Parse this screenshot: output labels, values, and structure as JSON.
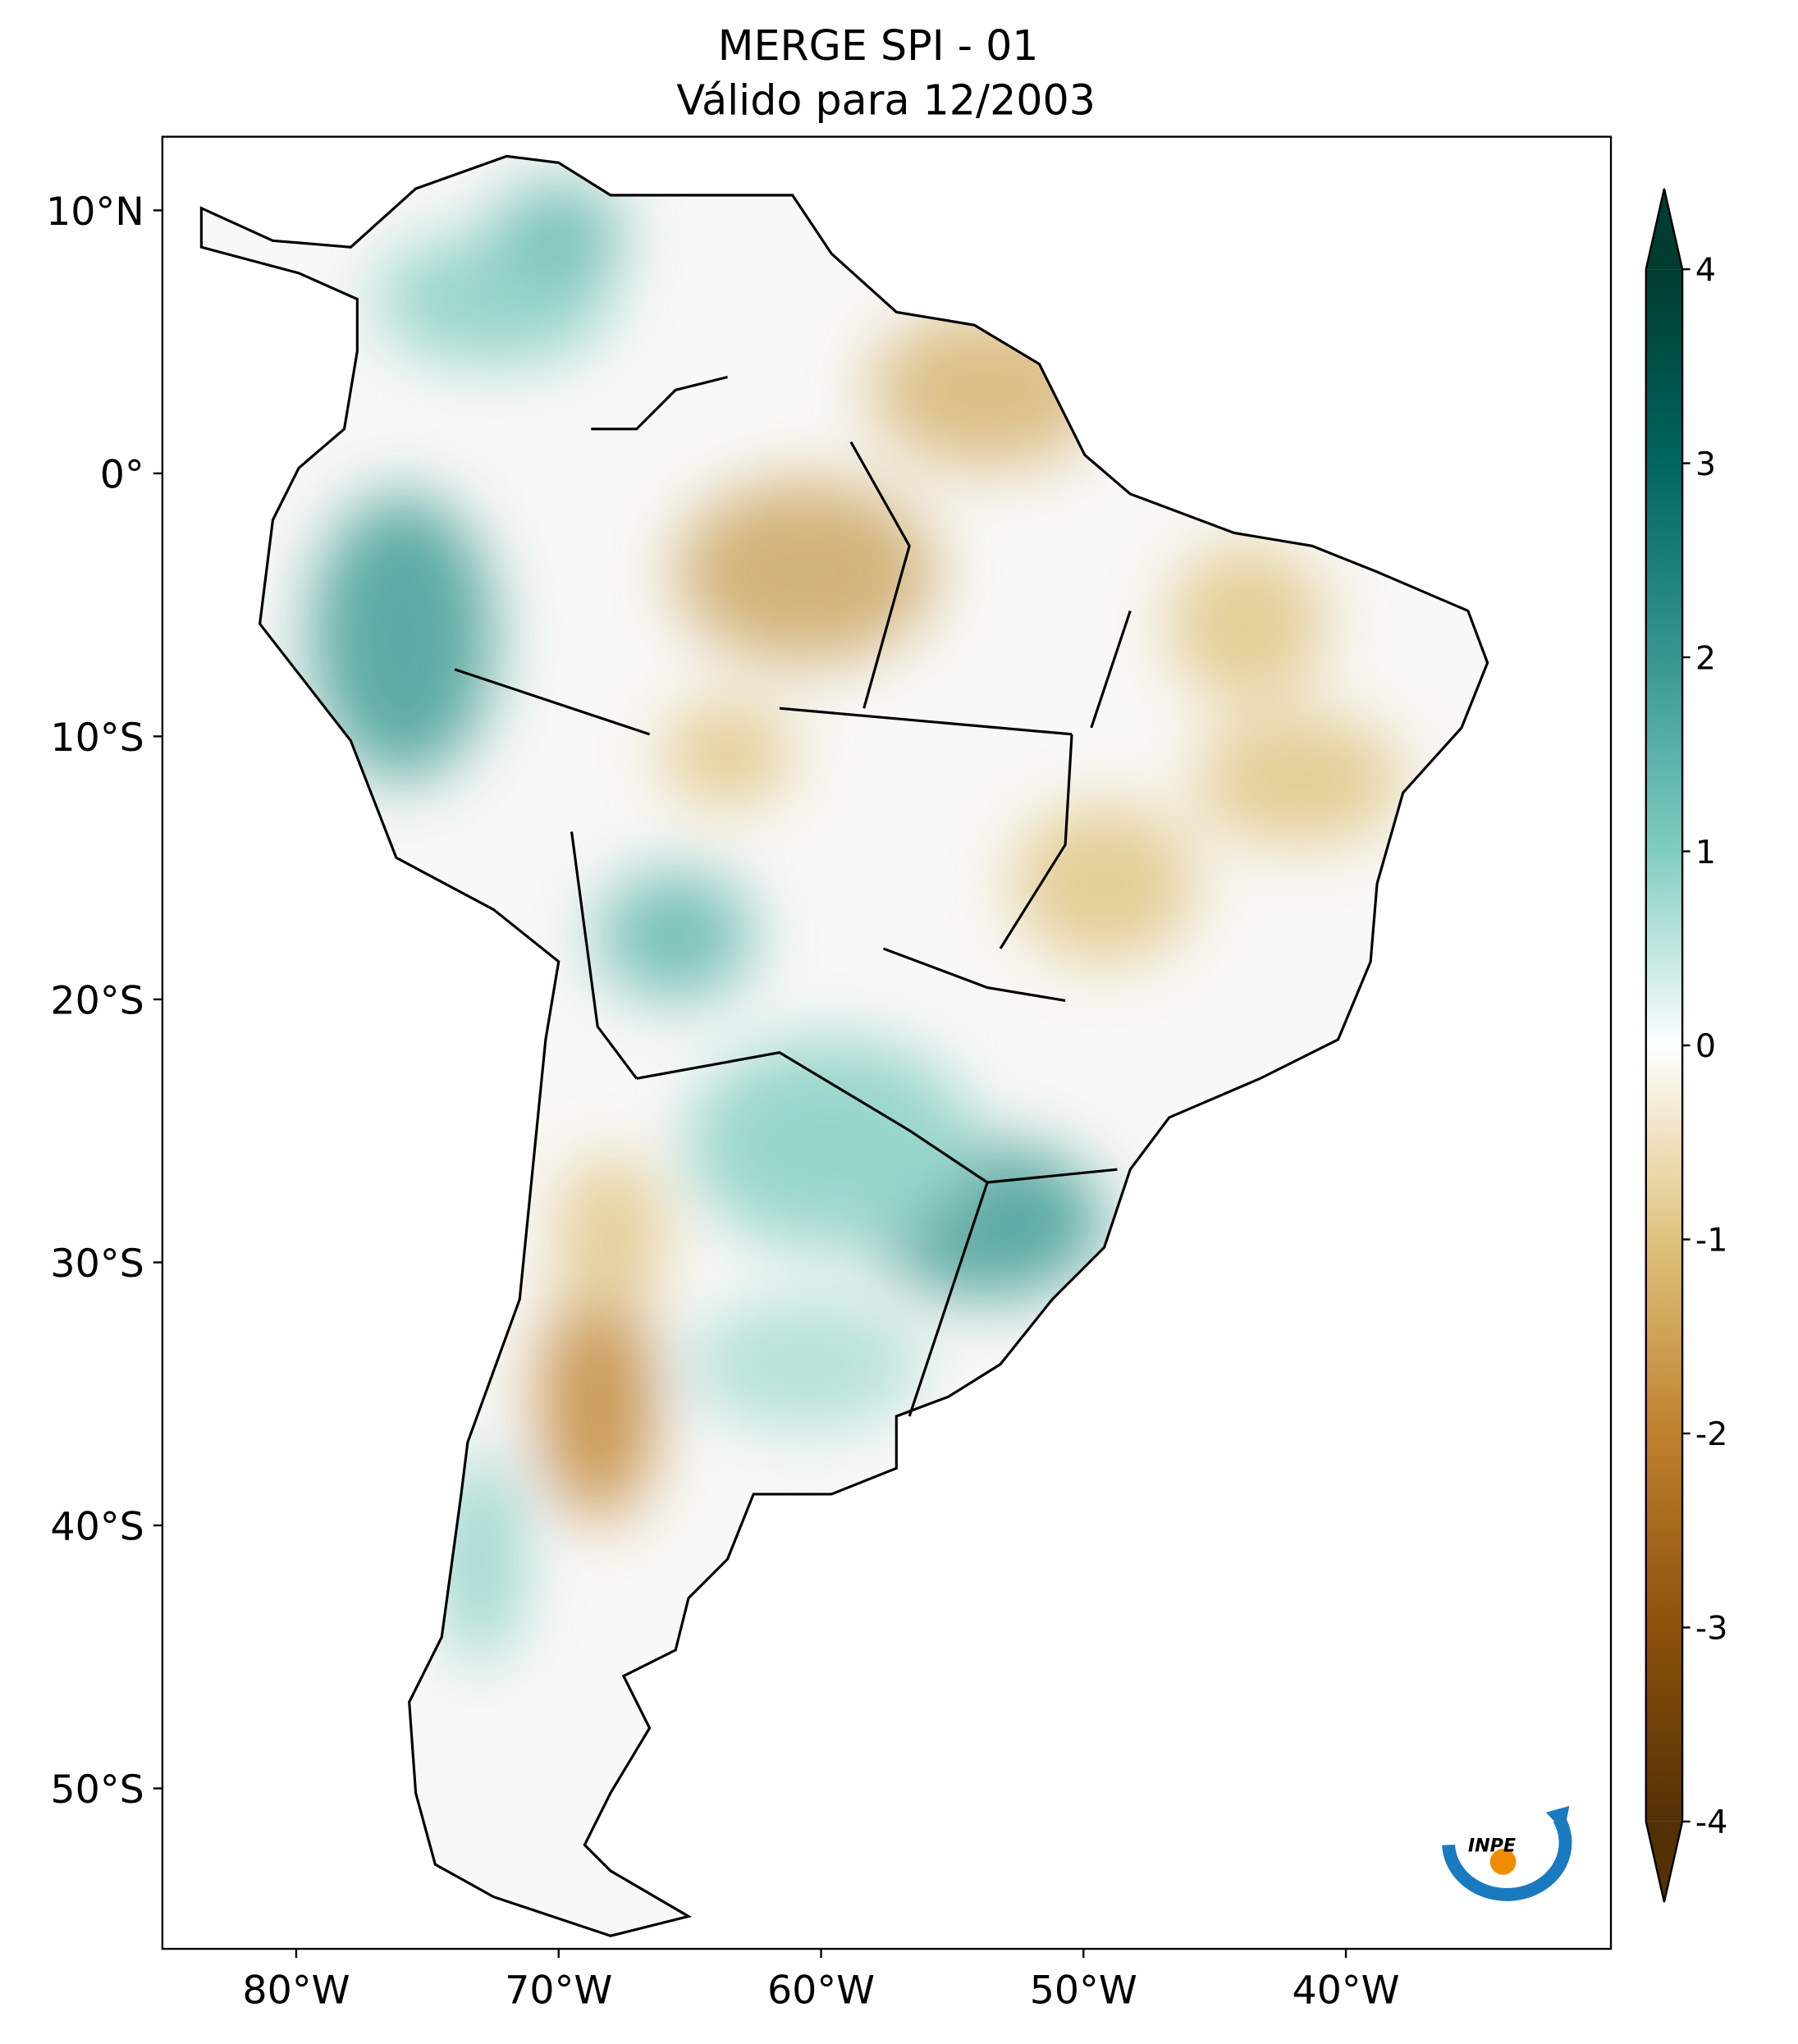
{
  "chart_data": {
    "type": "map",
    "title": "MERGE   SPI - 01",
    "subtitle": "Válido para 12/2003",
    "xlim": [
      -85.1,
      -29.9
    ],
    "ylim": [
      -56.1,
      12.8
    ],
    "xticks": [
      {
        "value": -80,
        "label": "80°W"
      },
      {
        "value": -70,
        "label": "70°W"
      },
      {
        "value": -60,
        "label": "60°W"
      },
      {
        "value": -50,
        "label": "50°W"
      },
      {
        "value": -40,
        "label": "40°W"
      }
    ],
    "yticks": [
      {
        "value": 10,
        "label": "10°N"
      },
      {
        "value": 0,
        "label": "0°"
      },
      {
        "value": -10,
        "label": "10°S"
      },
      {
        "value": -20,
        "label": "20°S"
      },
      {
        "value": -30,
        "label": "30°S"
      },
      {
        "value": -40,
        "label": "40°S"
      },
      {
        "value": -50,
        "label": "50°S"
      }
    ],
    "colorbar": {
      "lim": [
        -4,
        4
      ],
      "ticks": [
        4,
        3,
        2,
        1,
        0,
        -1,
        -2,
        -3,
        -4
      ],
      "colors": [
        "#543005",
        "#8c510a",
        "#bf812d",
        "#dfc27d",
        "#ffffff",
        "#80cdc1",
        "#35978f",
        "#01665e",
        "#003c30"
      ]
    },
    "logo": "INPE"
  }
}
